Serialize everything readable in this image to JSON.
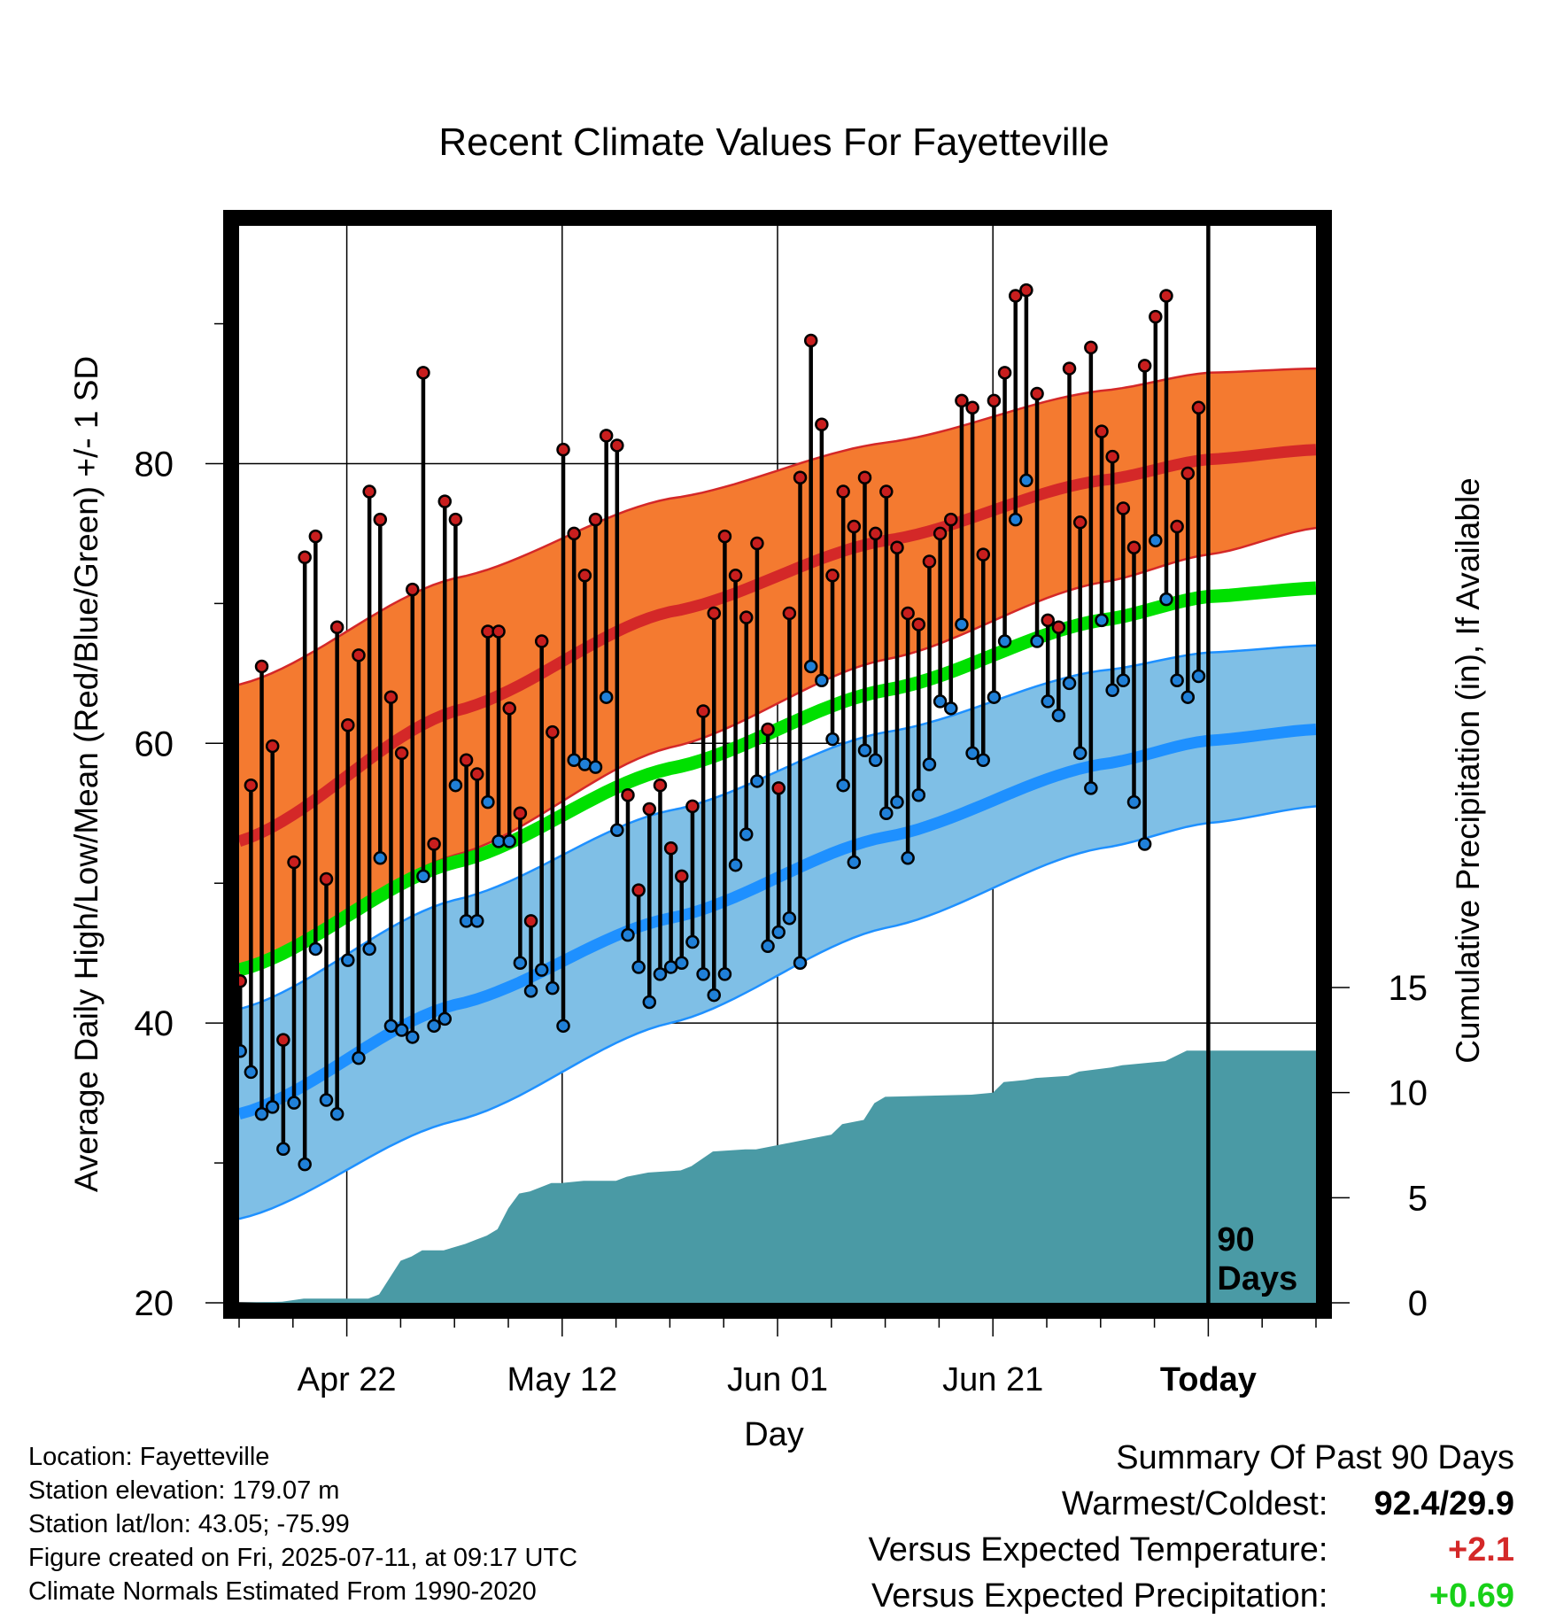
{
  "chart_data": {
    "type": "line",
    "title": "Recent Climate Values For Fayetteville",
    "xlabel": "Day",
    "ylabel": "Average Daily High/Low/Mean (Red/Blue/Green) +/- 1 SD",
    "y2label": "Cumulative Precipitation (in), If Available",
    "xlim": [
      0,
      100
    ],
    "ylim": [
      20,
      97
    ],
    "y2lim": [
      0,
      15
    ],
    "x_ticks": [
      {
        "day": 10,
        "label": "Apr 22"
      },
      {
        "day": 30,
        "label": "May 12"
      },
      {
        "day": 50,
        "label": "Jun 01"
      },
      {
        "day": 70,
        "label": "Jun 21"
      },
      {
        "day": 90,
        "label": "Today"
      }
    ],
    "y_ticks": [
      20,
      40,
      60,
      80
    ],
    "y2_ticks": [
      0,
      5,
      10,
      15
    ],
    "today_label": "90 Days",
    "today_day": 90,
    "normals": {
      "days": [
        0,
        20,
        40,
        60,
        80,
        90,
        100
      ],
      "high_mean": [
        53.0,
        62.3,
        69.4,
        74.5,
        78.8,
        80.3,
        81.0
      ],
      "high_upper": [
        64.2,
        71.8,
        77.5,
        81.5,
        85.2,
        86.5,
        86.8
      ],
      "high_lower": [
        43.5,
        52.0,
        59.7,
        66.0,
        71.5,
        73.5,
        75.4
      ],
      "mean_temp": [
        43.8,
        51.5,
        58.2,
        63.8,
        68.8,
        70.5,
        71.1
      ],
      "low_mean": [
        33.5,
        41.3,
        47.5,
        53.3,
        58.5,
        60.2,
        61.0
      ],
      "low_upper": [
        41.0,
        48.8,
        55.2,
        60.8,
        65.2,
        66.5,
        67.0
      ],
      "low_lower": [
        26.0,
        33.0,
        40.0,
        46.8,
        52.5,
        54.3,
        55.5
      ]
    },
    "observed": {
      "high": [
        43.0,
        57.0,
        65.5,
        59.8,
        38.8,
        51.5,
        73.3,
        74.8,
        50.3,
        68.3,
        61.3,
        66.3,
        78.0,
        76.0,
        63.3,
        59.3,
        71.0,
        86.5,
        52.8,
        77.3,
        76.0,
        58.8,
        57.8,
        68.0,
        68.0,
        62.5,
        55.0,
        47.3,
        67.3,
        60.8,
        81.0,
        75.0,
        72.0,
        76.0,
        82.0,
        81.3,
        56.3,
        49.5,
        55.3,
        57.0,
        52.5,
        50.5,
        55.5,
        62.3,
        69.3,
        74.8,
        72.0,
        69.0,
        74.3,
        61.0,
        56.8,
        69.3,
        79.0,
        88.8,
        82.8,
        72.0,
        78.0,
        75.5,
        79.0,
        75.0,
        78.0,
        74.0,
        69.3,
        68.5,
        73.0,
        75.0,
        76.0,
        84.5,
        84.0,
        73.5,
        84.5,
        86.5,
        92.0,
        92.4,
        85.0,
        68.8,
        68.3,
        86.8,
        75.8,
        88.3,
        82.3,
        80.5,
        76.8,
        74.0,
        87.0,
        90.5,
        92.0,
        75.5,
        79.3,
        84.0
      ],
      "low": [
        38.0,
        36.5,
        33.5,
        34.0,
        31.0,
        34.3,
        29.9,
        45.3,
        34.5,
        33.5,
        44.5,
        37.5,
        45.3,
        51.8,
        39.8,
        39.5,
        39.0,
        50.5,
        39.8,
        40.3,
        57.0,
        47.3,
        47.3,
        55.8,
        53.0,
        53.0,
        44.3,
        42.3,
        43.8,
        42.5,
        39.8,
        58.8,
        58.5,
        58.3,
        63.3,
        53.8,
        46.3,
        44.0,
        41.5,
        43.5,
        44.0,
        44.3,
        45.8,
        43.5,
        42.0,
        43.5,
        51.3,
        53.5,
        57.3,
        45.5,
        46.5,
        47.5,
        44.3,
        65.5,
        64.5,
        60.3,
        57.0,
        51.5,
        59.5,
        58.8,
        55.0,
        55.8,
        51.8,
        56.3,
        58.5,
        63.0,
        62.5,
        68.5,
        59.3,
        58.8,
        63.3,
        67.3,
        76.0,
        78.8,
        67.3,
        63.0,
        62.0,
        64.3,
        59.3,
        56.8,
        68.8,
        63.8,
        64.5,
        55.8,
        52.8,
        74.5,
        70.3,
        64.5,
        63.3,
        64.8
      ]
    },
    "precip_cumulative": {
      "days": [
        0,
        4,
        6,
        7,
        11,
        12,
        13,
        15,
        16,
        17,
        19,
        21,
        22,
        23,
        24,
        25,
        26,
        27,
        28,
        29,
        30,
        32,
        35,
        36,
        38,
        41,
        42,
        44,
        47,
        48,
        50,
        52,
        53,
        55,
        56,
        57,
        58,
        59,
        60,
        68,
        70,
        71,
        73,
        74,
        77,
        78,
        81,
        82,
        86,
        88,
        91,
        95
      ],
      "values": [
        0,
        0.05,
        0.2,
        0.2,
        0.2,
        0.2,
        0.4,
        2.0,
        2.2,
        2.5,
        2.5,
        2.8,
        3.0,
        3.2,
        3.5,
        4.5,
        5.2,
        5.3,
        5.5,
        5.7,
        5.7,
        5.8,
        5.8,
        6.0,
        6.2,
        6.3,
        6.5,
        7.2,
        7.3,
        7.3,
        7.5,
        7.7,
        7.8,
        8.0,
        8.5,
        8.6,
        8.7,
        9.5,
        9.8,
        9.9,
        10.0,
        10.5,
        10.6,
        10.7,
        10.8,
        11.0,
        11.2,
        11.3,
        11.5,
        12.0,
        12.0,
        12.0
      ]
    },
    "colors": {
      "high_band": "#f47a30",
      "high_line": "#d42828",
      "mean_line": "#00e000",
      "low_band": "#7fbfe6",
      "low_line": "#1e90ff",
      "precip": "#4a9aa5",
      "high_marker": "#c81e1e",
      "low_marker": "#2080d8"
    }
  },
  "info": {
    "location": "Location: Fayetteville",
    "elevation": "Station elevation: 179.07 m",
    "latlon": "Station lat/lon: 43.05; -75.99",
    "created": "Figure created on Fri, 2025-07-11, at 09:17 UTC",
    "normals": "Climate Normals Estimated From 1990-2020"
  },
  "summary": {
    "heading": "Summary Of Past 90 Days",
    "warm_label": "Warmest/Coldest:",
    "warm_value": "92.4/29.9",
    "temp_label": "Versus Expected Temperature:",
    "temp_value": "+2.1",
    "temp_color": "#d42828",
    "precip_label": "Versus Expected Precipitation:",
    "precip_value": "+0.69",
    "precip_color": "#18d018"
  }
}
